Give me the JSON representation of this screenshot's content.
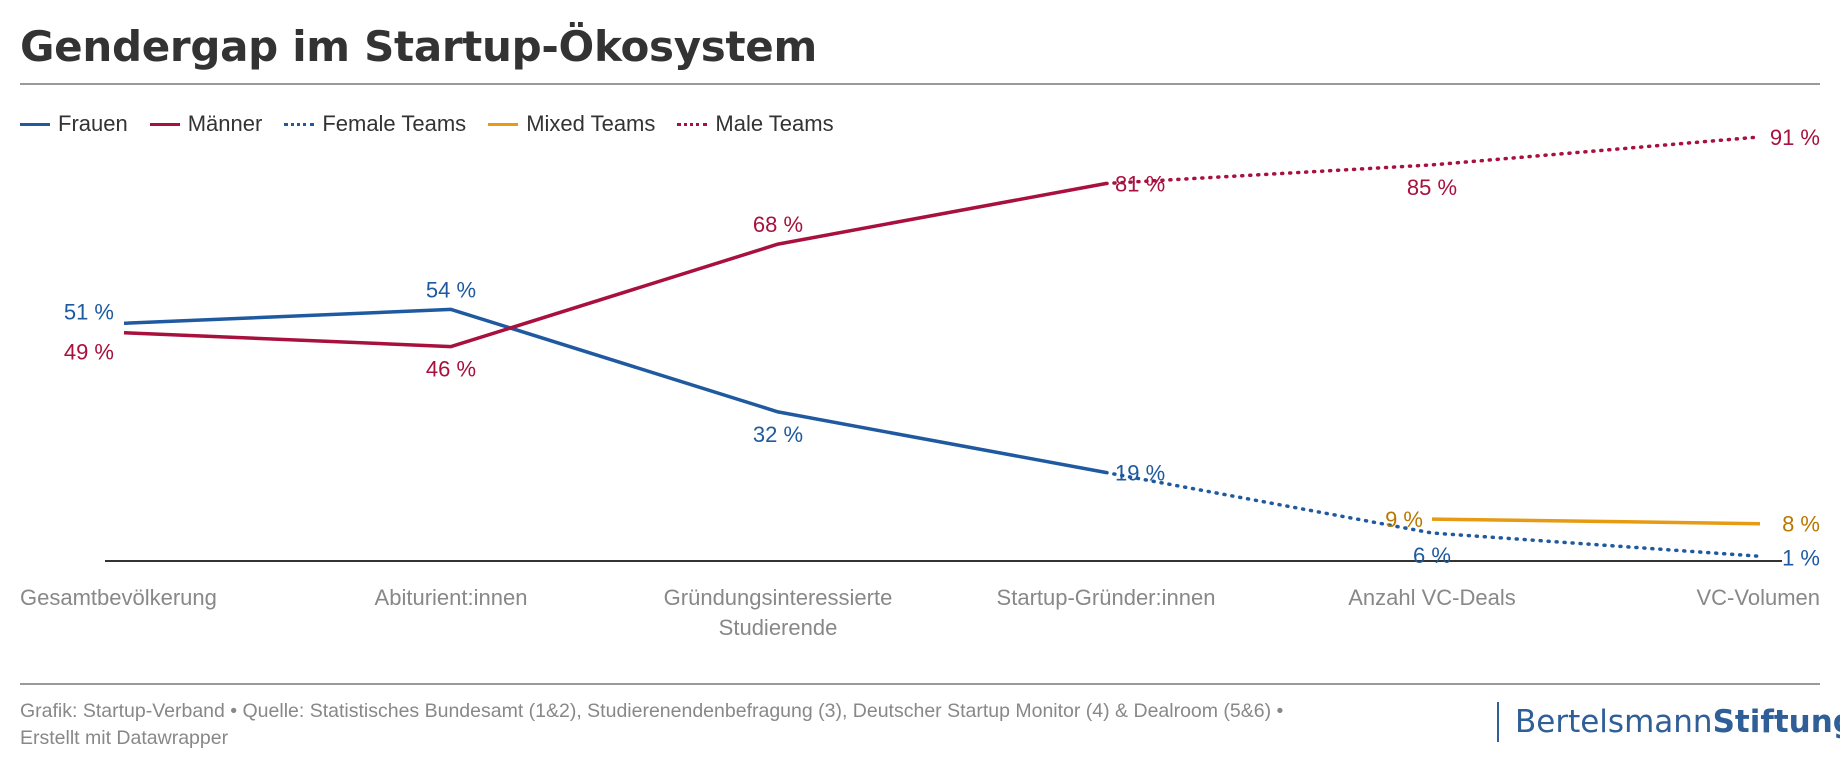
{
  "title": "Gendergap im Startup-Ökosystem",
  "footer": {
    "line1": "Grafik: Startup-Verband • Quelle: Statistisches Bundesamt (1&2), Studierenendenbefragung (3), Deutscher Startup Monitor (4) & Dealroom (5&6) •",
    "line2": "Erstellt mit Datawrapper"
  },
  "brand": {
    "part1": "Bertelsmann",
    "part2": "Stiftung"
  },
  "colors": {
    "blue": "#1f5aa0",
    "red": "#a8103e",
    "orange": "#e69b12",
    "text": "#333333",
    "muted": "#888888"
  },
  "chart_data": {
    "type": "line",
    "categories": [
      "Gesamtbevölkerung",
      "Abiturient:innen",
      "Gründungsinteressierte Studierende",
      "Startup-Gründer:innen",
      "Anzahl VC-Deals",
      "VC-Volumen"
    ],
    "category_lines": [
      [
        "Gesamtbevölkerung"
      ],
      [
        "Abiturient:innen"
      ],
      [
        "Gründungsinteressierte",
        "Studierende"
      ],
      [
        "Startup-Gründer:innen"
      ],
      [
        "Anzahl VC-Deals"
      ],
      [
        "VC-Volumen"
      ]
    ],
    "ylim": [
      0,
      100
    ],
    "grid": false,
    "legend_position": "top-left",
    "value_suffix": " %",
    "series": [
      {
        "name": "Frauen",
        "color": "#1f5aa0",
        "style": "solid",
        "x": [
          0,
          1,
          2,
          3
        ],
        "values": [
          51,
          54,
          32,
          19
        ],
        "label_pos": [
          "above",
          "above",
          "below",
          "right"
        ]
      },
      {
        "name": "Männer",
        "color": "#a8103e",
        "style": "solid",
        "x": [
          0,
          1,
          2,
          3
        ],
        "values": [
          49,
          46,
          68,
          81
        ],
        "label_pos": [
          "below",
          "below",
          "above",
          "right"
        ]
      },
      {
        "name": "Female Teams",
        "color": "#1f5aa0",
        "style": "dotted",
        "x": [
          3,
          4,
          5
        ],
        "values": [
          19,
          6,
          1
        ],
        "label_pos": [
          "none",
          "below",
          "right"
        ]
      },
      {
        "name": "Mixed Teams",
        "color": "#e69b12",
        "style": "solid",
        "x": [
          4,
          5
        ],
        "values": [
          9,
          8
        ],
        "label_pos": [
          "left",
          "right"
        ]
      },
      {
        "name": "Male Teams",
        "color": "#a8103e",
        "style": "dotted",
        "x": [
          3,
          4,
          5
        ],
        "values": [
          81,
          85,
          91
        ],
        "label_pos": [
          "none",
          "below",
          "right"
        ]
      }
    ]
  }
}
